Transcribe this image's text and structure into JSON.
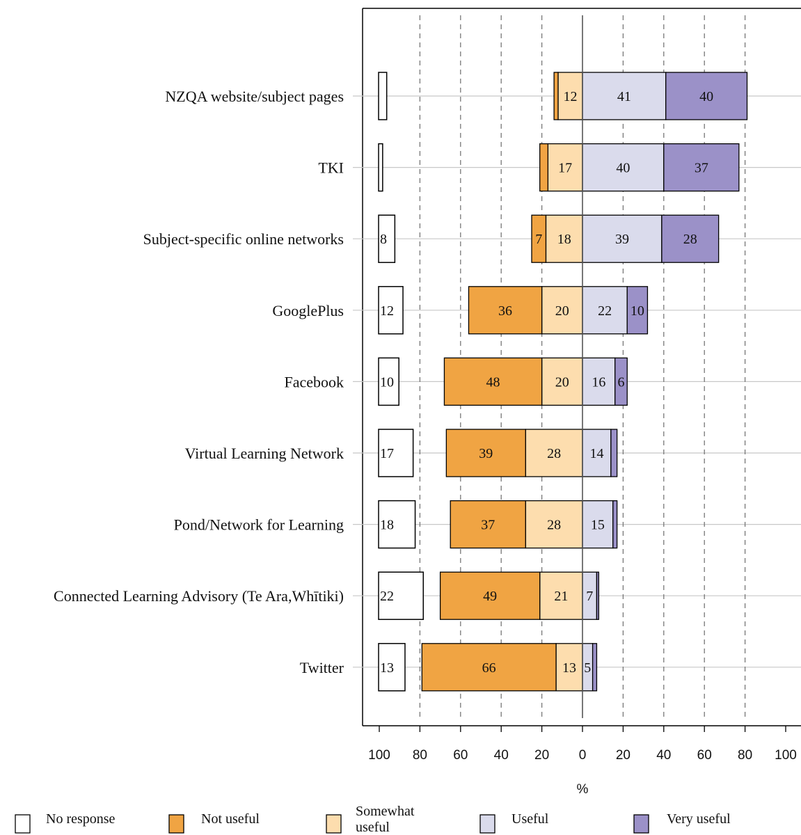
{
  "chart_data": {
    "type": "bar",
    "subtype": "diverging-stacked-horizontal",
    "categories": [
      "NZQA website/subject pages",
      "TKI",
      "Subject-specific online networks",
      "GooglePlus",
      "Facebook",
      "Virtual Learning Network",
      "Pond/Network for Learning",
      "Connected Learning Advisory (Te Ara,Whītiki)",
      "Twitter"
    ],
    "no_response": {
      "name": "No response",
      "values": [
        4,
        2,
        8,
        12,
        10,
        17,
        18,
        22,
        13
      ],
      "labels": [
        "",
        "",
        "8",
        "12",
        "10",
        "17",
        "18",
        "22",
        "13"
      ]
    },
    "series": [
      {
        "name": "Not useful",
        "side": "negative",
        "color": "#F0A443",
        "values": [
          2,
          4,
          7,
          36,
          48,
          39,
          37,
          49,
          66
        ],
        "labels": [
          "",
          "",
          "7",
          "36",
          "48",
          "39",
          "37",
          "49",
          "66"
        ]
      },
      {
        "name": "Somewhat useful",
        "side": "negative",
        "color": "#FDDDAE",
        "values": [
          12,
          17,
          18,
          20,
          20,
          28,
          28,
          21,
          13
        ],
        "labels": [
          "12",
          "17",
          "18",
          "20",
          "20",
          "28",
          "28",
          "21",
          "13"
        ]
      },
      {
        "name": "Useful",
        "side": "positive",
        "color": "#DADBEC",
        "values": [
          41,
          40,
          39,
          22,
          16,
          14,
          15,
          7,
          5
        ],
        "labels": [
          "41",
          "40",
          "39",
          "22",
          "16",
          "14",
          "15",
          "7",
          "5"
        ]
      },
      {
        "name": "Very useful",
        "side": "positive",
        "color": "#9B91C8",
        "values": [
          40,
          37,
          28,
          10,
          6,
          3,
          2,
          1,
          2
        ],
        "labels": [
          "40",
          "37",
          "28",
          "10",
          "6",
          "",
          "",
          "",
          ""
        ]
      }
    ],
    "xlabel": "%",
    "xlim": [
      -100,
      100
    ],
    "x_ticks": [
      -100,
      -80,
      -60,
      -40,
      -20,
      0,
      20,
      40,
      60,
      80,
      100
    ],
    "x_tick_labels": [
      "100",
      "80",
      "60",
      "40",
      "20",
      "0",
      "20",
      "40",
      "60",
      "80",
      "100"
    ],
    "gridlines": [
      -80,
      -60,
      -40,
      -20,
      20,
      40,
      60,
      80
    ],
    "grid": true,
    "legend_position": "bottom",
    "legend": [
      {
        "name": "No response",
        "lines": [
          "No response"
        ],
        "color": "#FFFFFF"
      },
      {
        "name": "Not useful",
        "lines": [
          "Not useful"
        ],
        "color": "#F0A443"
      },
      {
        "name": "Somewhat useful",
        "lines": [
          "Somewhat",
          "useful"
        ],
        "color": "#FDDDAE"
      },
      {
        "name": "Useful",
        "lines": [
          "Useful"
        ],
        "color": "#DADBEC"
      },
      {
        "name": "Very useful",
        "lines": [
          "Very useful"
        ],
        "color": "#9B91C8"
      }
    ]
  }
}
